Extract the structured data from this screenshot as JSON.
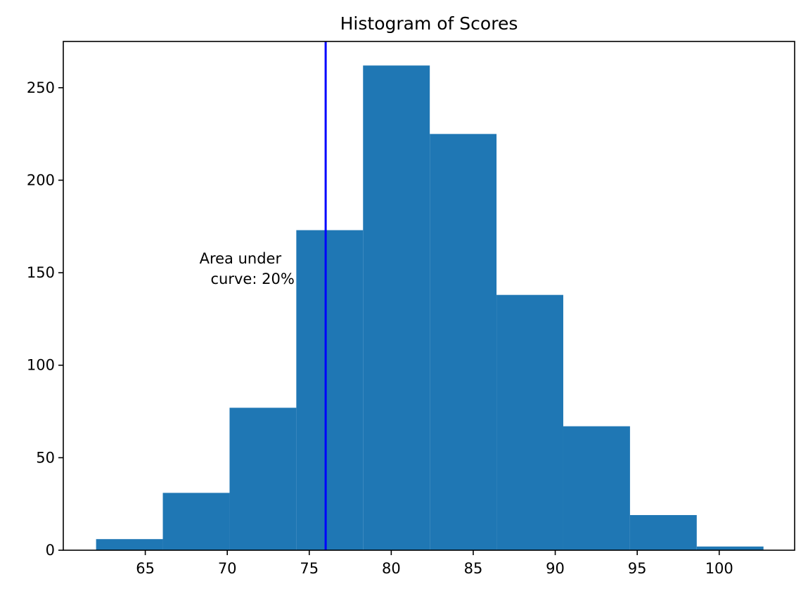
{
  "chart_data": {
    "type": "histogram",
    "title": "Histogram of Scores",
    "xlabel": "",
    "ylabel": "",
    "xlim": [
      60.0,
      104.6
    ],
    "ylim": [
      0,
      275
    ],
    "grid": false,
    "bar_color": "#1f77b4",
    "bins": [
      {
        "start": 62.0,
        "end": 66.07,
        "count": 6
      },
      {
        "start": 66.07,
        "end": 70.14,
        "count": 31
      },
      {
        "start": 70.14,
        "end": 74.21,
        "count": 77
      },
      {
        "start": 74.21,
        "end": 78.28,
        "count": 173
      },
      {
        "start": 78.28,
        "end": 82.35,
        "count": 262
      },
      {
        "start": 82.35,
        "end": 86.42,
        "count": 225
      },
      {
        "start": 86.42,
        "end": 90.49,
        "count": 138
      },
      {
        "start": 90.49,
        "end": 94.56,
        "count": 67
      },
      {
        "start": 94.56,
        "end": 98.63,
        "count": 19
      },
      {
        "start": 98.63,
        "end": 102.7,
        "count": 2
      }
    ],
    "xticks": [
      65,
      70,
      75,
      80,
      85,
      90,
      95,
      100
    ],
    "xtick_labels": [
      "65",
      "70",
      "75",
      "80",
      "85",
      "90",
      "95",
      "100"
    ],
    "yticks": [
      0,
      50,
      100,
      150,
      200,
      250
    ],
    "ytick_labels": [
      "0",
      "50",
      "100",
      "150",
      "200",
      "250"
    ],
    "vline": {
      "x": 76.0,
      "color": "#0000ff"
    },
    "annotation": {
      "lines": [
        "Area under",
        "curve: 20%"
      ],
      "x": 74.1,
      "y": 155
    }
  }
}
